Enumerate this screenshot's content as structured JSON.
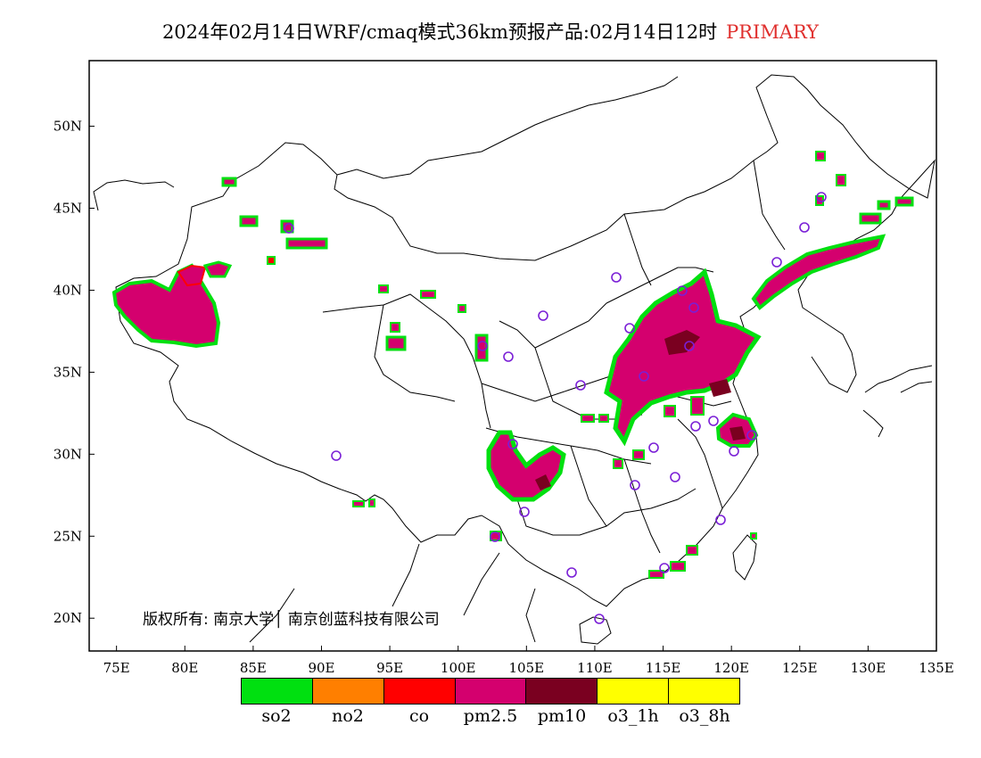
{
  "title": {
    "main": "2024年02月14日WRF/cmaq模式36km预报产品:02月14日12时",
    "tag": "PRIMARY",
    "tag_color": "#e0302e"
  },
  "map": {
    "lon_range": [
      73,
      135
    ],
    "lat_range": [
      18,
      54
    ],
    "lon_ticks": [
      "75E",
      "80E",
      "85E",
      "90E",
      "95E",
      "100E",
      "105E",
      "110E",
      "115E",
      "120E",
      "125E",
      "130E",
      "135E"
    ],
    "lat_ticks": [
      "20N",
      "25N",
      "30N",
      "35N",
      "40N",
      "45N",
      "50N"
    ],
    "legend_note_boundary_color": "#000000",
    "station_marker_color": "#7a1fd6"
  },
  "copyright": "版权所有: 南京大学│ 南京创蓝科技有限公司",
  "legend": [
    {
      "label": "so2",
      "color": "#00e010"
    },
    {
      "label": "no2",
      "color": "#ff7f00"
    },
    {
      "label": "co",
      "color": "#ff0000"
    },
    {
      "label": "pm2.5",
      "color": "#d4006e"
    },
    {
      "label": "pm10",
      "color": "#7a0020"
    },
    {
      "label": "o3_1h",
      "color": "#ffff00"
    },
    {
      "label": "o3_8h",
      "color": "#ffff00"
    }
  ]
}
